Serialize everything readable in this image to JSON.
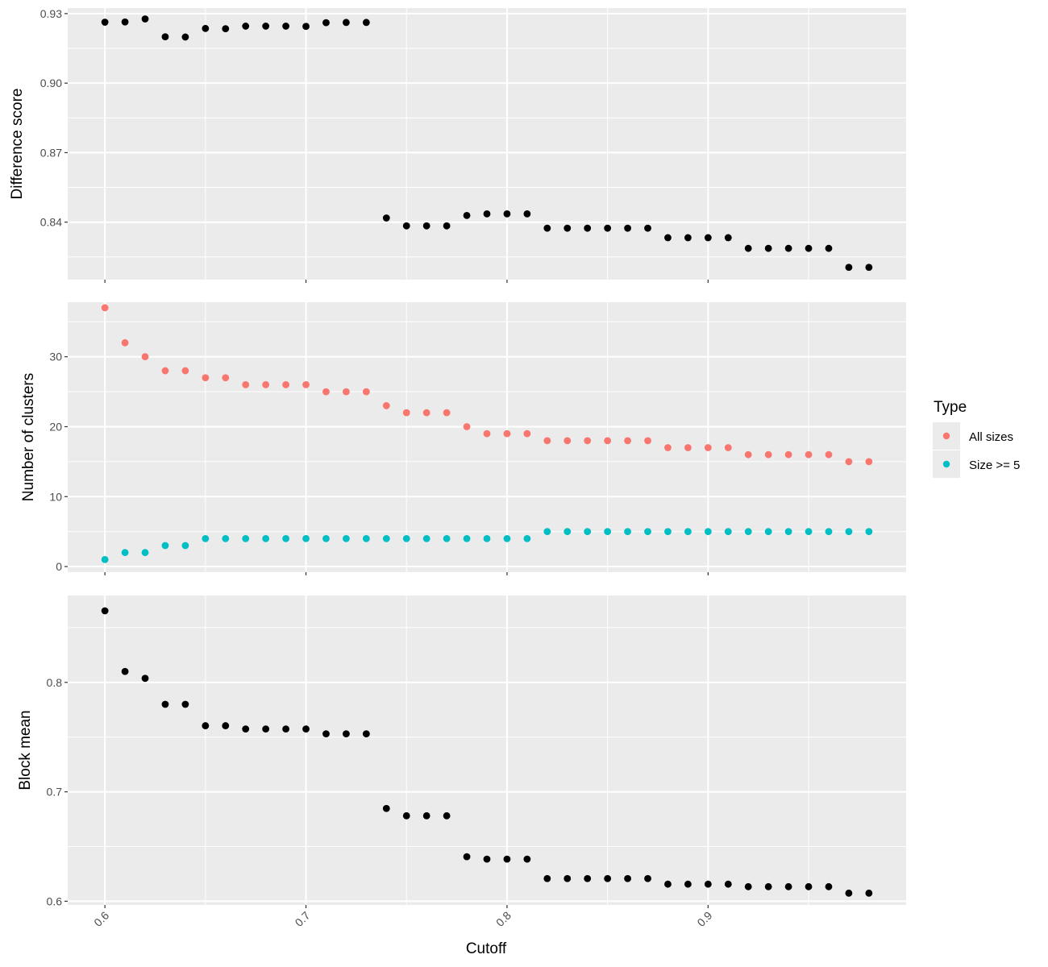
{
  "chart_data": [
    {
      "type": "scatter",
      "title": "",
      "ylabel": "Difference score",
      "xlim": [
        0.5815,
        0.9985
      ],
      "ylim": [
        0.8152,
        0.9324
      ],
      "y_ticks": [
        "0.84",
        "0.87",
        "0.90",
        "0.93"
      ],
      "y_tick_values": [
        0.84,
        0.87,
        0.9,
        0.93
      ],
      "grid": true,
      "series": [
        {
          "color": "#000000",
          "x": [
            0.6,
            0.61,
            0.62,
            0.63,
            0.64,
            0.65,
            0.66,
            0.67,
            0.68,
            0.69,
            0.7,
            0.71,
            0.72,
            0.73,
            0.74,
            0.75,
            0.76,
            0.77,
            0.78,
            0.79,
            0.8,
            0.81,
            0.82,
            0.83,
            0.84,
            0.85,
            0.86,
            0.87,
            0.88,
            0.89,
            0.9,
            0.91,
            0.92,
            0.93,
            0.94,
            0.95,
            0.96,
            0.97,
            0.98
          ],
          "y": [
            0.9263,
            0.9264,
            0.9277,
            0.92,
            0.9199,
            0.9236,
            0.9235,
            0.9246,
            0.9246,
            0.9246,
            0.9245,
            0.9261,
            0.9262,
            0.9262,
            0.8418,
            0.8384,
            0.8384,
            0.8384,
            0.8429,
            0.8436,
            0.8436,
            0.8436,
            0.8374,
            0.8374,
            0.8374,
            0.8374,
            0.8374,
            0.8374,
            0.8333,
            0.8333,
            0.8333,
            0.8333,
            0.8287,
            0.8287,
            0.8287,
            0.8287,
            0.8287,
            0.8205,
            0.8205
          ]
        }
      ]
    },
    {
      "type": "scatter",
      "title": "",
      "ylabel": "Number of clusters",
      "xlim": [
        0.5815,
        0.9985
      ],
      "ylim": [
        -0.8,
        37.8
      ],
      "y_ticks": [
        "0",
        "10",
        "20",
        "30"
      ],
      "y_tick_values": [
        0,
        10,
        20,
        30
      ],
      "grid": true,
      "legend": {
        "title": "Type",
        "position": "right",
        "entries": [
          {
            "label": "All sizes",
            "color": "#F8766D"
          },
          {
            "label": "Size >= 5",
            "color": "#00BFC4"
          }
        ]
      },
      "series": [
        {
          "name": "All sizes",
          "color": "#F8766D",
          "x": [
            0.6,
            0.61,
            0.62,
            0.63,
            0.64,
            0.65,
            0.66,
            0.67,
            0.68,
            0.69,
            0.7,
            0.71,
            0.72,
            0.73,
            0.74,
            0.75,
            0.76,
            0.77,
            0.78,
            0.79,
            0.8,
            0.81,
            0.82,
            0.83,
            0.84,
            0.85,
            0.86,
            0.87,
            0.88,
            0.89,
            0.9,
            0.91,
            0.92,
            0.93,
            0.94,
            0.95,
            0.96,
            0.97,
            0.98
          ],
          "y": [
            37,
            32,
            30,
            28,
            28,
            27,
            27,
            26,
            26,
            26,
            26,
            25,
            25,
            25,
            23,
            22,
            22,
            22,
            20,
            19,
            19,
            19,
            18,
            18,
            18,
            18,
            18,
            18,
            17,
            17,
            17,
            17,
            16,
            16,
            16,
            16,
            16,
            15,
            15
          ]
        },
        {
          "name": "Size >= 5",
          "color": "#00BFC4",
          "x": [
            0.6,
            0.61,
            0.62,
            0.63,
            0.64,
            0.65,
            0.66,
            0.67,
            0.68,
            0.69,
            0.7,
            0.71,
            0.72,
            0.73,
            0.74,
            0.75,
            0.76,
            0.77,
            0.78,
            0.79,
            0.8,
            0.81,
            0.82,
            0.83,
            0.84,
            0.85,
            0.86,
            0.87,
            0.88,
            0.89,
            0.9,
            0.91,
            0.92,
            0.93,
            0.94,
            0.95,
            0.96,
            0.97,
            0.98
          ],
          "y": [
            1,
            2,
            2,
            3,
            3,
            4,
            4,
            4,
            4,
            4,
            4,
            4,
            4,
            4,
            4,
            4,
            4,
            4,
            4,
            4,
            4,
            4,
            5,
            5,
            5,
            5,
            5,
            5,
            5,
            5,
            5,
            5,
            5,
            5,
            5,
            5,
            5,
            5,
            5
          ]
        }
      ]
    },
    {
      "type": "scatter",
      "title": "",
      "ylabel": "Block mean",
      "xlabel": "Cutoff",
      "xlim": [
        0.5815,
        0.9985
      ],
      "x_ticks": [
        "0.6",
        "0.7",
        "0.8",
        "0.9"
      ],
      "x_tick_values": [
        0.6,
        0.7,
        0.8,
        0.9
      ],
      "ylim": [
        0.5966,
        0.8794
      ],
      "y_ticks": [
        "0.6",
        "0.7",
        "0.8"
      ],
      "y_tick_values": [
        0.6,
        0.7,
        0.8
      ],
      "grid": true,
      "series": [
        {
          "color": "#000000",
          "x": [
            0.6,
            0.61,
            0.62,
            0.63,
            0.64,
            0.65,
            0.66,
            0.67,
            0.68,
            0.69,
            0.7,
            0.71,
            0.72,
            0.73,
            0.74,
            0.75,
            0.76,
            0.77,
            0.78,
            0.79,
            0.8,
            0.81,
            0.82,
            0.83,
            0.84,
            0.85,
            0.86,
            0.87,
            0.88,
            0.89,
            0.9,
            0.91,
            0.92,
            0.93,
            0.94,
            0.95,
            0.96,
            0.97,
            0.98
          ],
          "y": [
            0.8654,
            0.81,
            0.8037,
            0.78,
            0.78,
            0.7604,
            0.7604,
            0.7574,
            0.7574,
            0.7574,
            0.7574,
            0.753,
            0.753,
            0.753,
            0.6848,
            0.6781,
            0.6781,
            0.6781,
            0.6407,
            0.6385,
            0.6385,
            0.6385,
            0.6207,
            0.6207,
            0.6207,
            0.6207,
            0.6207,
            0.6207,
            0.6156,
            0.6156,
            0.6156,
            0.6156,
            0.6133,
            0.6133,
            0.6133,
            0.6133,
            0.6133,
            0.6074,
            0.6074
          ]
        }
      ]
    }
  ]
}
